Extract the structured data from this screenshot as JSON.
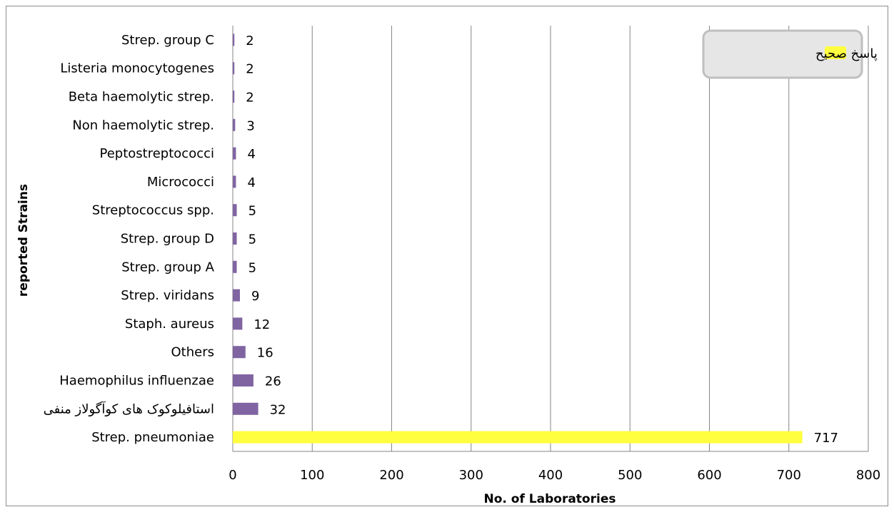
{
  "chart_data": {
    "type": "bar",
    "orientation": "horizontal",
    "title": "",
    "xlabel": "No. of Laboratories",
    "ylabel": "reported Strains",
    "xlim": [
      0,
      800
    ],
    "xticks": [
      "0",
      "100",
      "200",
      "300",
      "400",
      "500",
      "600",
      "700",
      "800"
    ],
    "grid": "vertical",
    "legend_position": "top-right",
    "legend": [
      {
        "label": "پاسخ صحیح",
        "color": "#ffff3f"
      }
    ],
    "categories": [
      "Strep. group C",
      "Listeria monocytogenes",
      "Beta haemolytic strep.",
      "Non haemolytic strep.",
      "Peptostreptococci",
      "Micrococci",
      "Streptococcus spp.",
      "Strep. group D",
      "Strep. group A",
      "Strep. viridans",
      "Staph. aureus",
      "Others",
      "Haemophilus influenzae",
      "استافیلوکوک های کوآگولاز منفی",
      "Strep. pneumoniae"
    ],
    "values": [
      2,
      2,
      2,
      3,
      4,
      4,
      5,
      5,
      5,
      9,
      12,
      16,
      26,
      32,
      717
    ],
    "bar_colors": [
      "#8064a2",
      "#8064a2",
      "#8064a2",
      "#8064a2",
      "#8064a2",
      "#8064a2",
      "#8064a2",
      "#8064a2",
      "#8064a2",
      "#8064a2",
      "#8064a2",
      "#8064a2",
      "#8064a2",
      "#8064a2",
      "#ffff3f"
    ]
  }
}
